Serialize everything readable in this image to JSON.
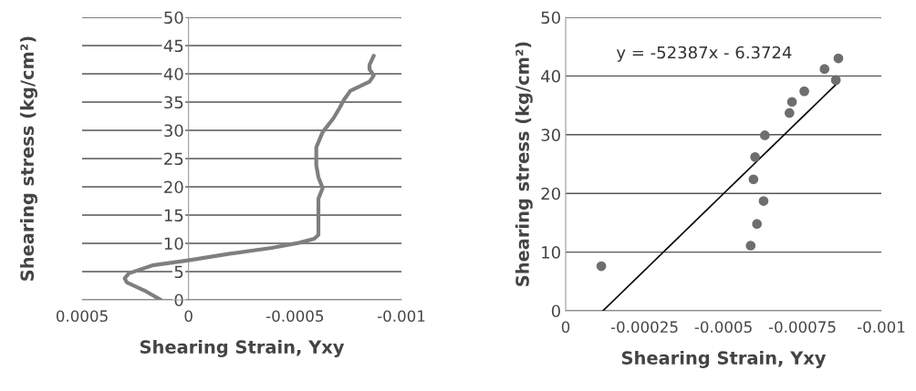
{
  "chart_data": [
    {
      "type": "line",
      "xlabel": "Shearing Strain, Υxy",
      "ylabel": "Shearing stress (kg/cm²)",
      "grid": "y",
      "marker": "none",
      "line_style": "solid",
      "xlim": [
        0.0005,
        -0.001
      ],
      "xticks": [
        0.0005,
        0,
        -0.0005,
        -0.001
      ],
      "ylim": [
        0,
        50
      ],
      "yticks": [
        0,
        5,
        10,
        15,
        20,
        25,
        30,
        35,
        40,
        45,
        50
      ],
      "series": [
        {
          "color": "#7f7f7f",
          "x": [
            0.00013,
            0.0002,
            0.00029,
            0.0003,
            0.00028,
            0.00017,
            0,
            -0.0002,
            -0.00039,
            -0.00052,
            -0.00059,
            -0.00061,
            -0.00061,
            -0.00061,
            -0.00063,
            -0.00061,
            -0.0006,
            -0.0006,
            -0.00063,
            -0.00068,
            -0.00071,
            -0.00073,
            -0.00076,
            -0.00085,
            -0.00087,
            -0.00085,
            -0.00085,
            -0.00087
          ],
          "values": [
            0,
            1.5,
            3.1,
            3.8,
            4.7,
            6.1,
            7.0,
            8.2,
            9.2,
            10.1,
            10.8,
            11.5,
            15.2,
            17.9,
            19.8,
            21.7,
            23.8,
            27.0,
            29.7,
            32.1,
            34.0,
            35.4,
            37.0,
            38.6,
            39.7,
            40.8,
            41.6,
            43.2
          ]
        }
      ]
    },
    {
      "type": "scatter",
      "xlabel": "Shearing Strain, Υxy",
      "ylabel": "Shearing stress (kg/cm²)",
      "grid": "y",
      "marker": "circle",
      "xlim": [
        0,
        -0.001
      ],
      "xticks": [
        0,
        -0.00025,
        -0.0005,
        -0.00075,
        -0.001
      ],
      "ylim": [
        0,
        50
      ],
      "yticks": [
        0,
        10,
        20,
        30,
        40,
        50
      ],
      "annotations": [
        "y = -52387x - 6.3724"
      ],
      "series": [
        {
          "type": "scatter",
          "color": "#6e6e6e",
          "x": [
            -0.000113,
            -0.000586,
            -0.000606,
            -0.000627,
            -0.000595,
            -0.0006,
            -0.000631,
            -0.000709,
            -0.000717,
            -0.000756,
            -0.00082,
            -0.000856,
            -0.000864
          ],
          "values": [
            7.6,
            11.1,
            14.8,
            18.7,
            22.4,
            26.2,
            29.9,
            33.7,
            35.6,
            37.4,
            41.2,
            39.3,
            43.0
          ]
        },
        {
          "type": "line",
          "marker": "none",
          "color": "#000000",
          "x": [
            -0.000118,
            -0.000861
          ],
          "values": [
            0,
            38.8
          ]
        }
      ]
    }
  ]
}
